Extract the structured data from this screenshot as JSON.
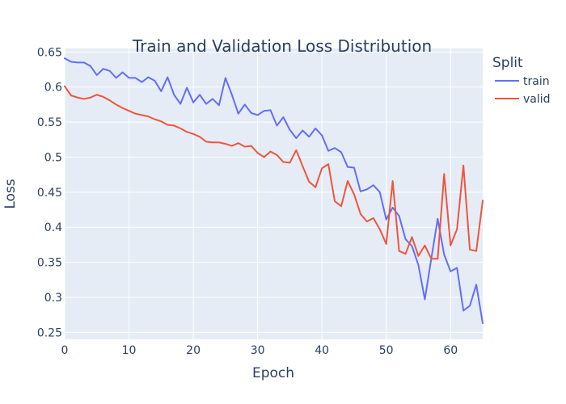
{
  "chart_data": {
    "type": "line",
    "title": "Train and Validation Loss Distribution",
    "xlabel": "Epoch",
    "ylabel": "Loss",
    "xlim": [
      0,
      65
    ],
    "ylim": [
      0.24,
      0.655
    ],
    "x_ticks": [
      0,
      10,
      20,
      30,
      40,
      50,
      60
    ],
    "y_ticks": [
      0.25,
      0.3,
      0.35,
      0.4,
      0.45,
      0.5,
      0.55,
      0.6,
      0.65
    ],
    "y_tick_labels": [
      "0.25",
      "0.3",
      "0.35",
      "0.4",
      "0.45",
      "0.5",
      "0.55",
      "0.6",
      "0.65"
    ],
    "grid": true,
    "legend": {
      "title": "Split",
      "placement": "right"
    },
    "x": [
      0,
      1,
      2,
      3,
      4,
      5,
      6,
      7,
      8,
      9,
      10,
      11,
      12,
      13,
      14,
      15,
      16,
      17,
      18,
      19,
      20,
      21,
      22,
      23,
      24,
      25,
      26,
      27,
      28,
      29,
      30,
      31,
      32,
      33,
      34,
      35,
      36,
      37,
      38,
      39,
      40,
      41,
      42,
      43,
      44,
      45,
      46,
      47,
      48,
      49,
      50,
      51,
      52,
      53,
      54,
      55,
      56,
      57,
      58,
      59,
      60,
      61,
      62,
      63,
      64,
      65
    ],
    "series": [
      {
        "name": "train",
        "color": "#636efa",
        "values": [
          0.641,
          0.636,
          0.635,
          0.635,
          0.63,
          0.617,
          0.626,
          0.623,
          0.613,
          0.621,
          0.613,
          0.613,
          0.607,
          0.614,
          0.609,
          0.594,
          0.614,
          0.589,
          0.576,
          0.599,
          0.578,
          0.589,
          0.576,
          0.583,
          0.574,
          0.613,
          0.589,
          0.562,
          0.575,
          0.563,
          0.56,
          0.566,
          0.567,
          0.545,
          0.557,
          0.539,
          0.527,
          0.538,
          0.529,
          0.541,
          0.531,
          0.509,
          0.513,
          0.507,
          0.486,
          0.485,
          0.451,
          0.454,
          0.46,
          0.45,
          0.411,
          0.428,
          0.416,
          0.383,
          0.373,
          0.346,
          0.297,
          0.355,
          0.412,
          0.361,
          0.337,
          0.342,
          0.281,
          0.288,
          0.318,
          0.263
        ]
      },
      {
        "name": "valid",
        "color": "#ef553b",
        "values": [
          0.601,
          0.588,
          0.585,
          0.583,
          0.585,
          0.589,
          0.586,
          0.581,
          0.575,
          0.57,
          0.566,
          0.562,
          0.56,
          0.558,
          0.554,
          0.551,
          0.546,
          0.545,
          0.541,
          0.536,
          0.533,
          0.529,
          0.522,
          0.521,
          0.521,
          0.519,
          0.516,
          0.52,
          0.515,
          0.516,
          0.506,
          0.5,
          0.508,
          0.503,
          0.493,
          0.492,
          0.51,
          0.487,
          0.465,
          0.457,
          0.484,
          0.49,
          0.437,
          0.43,
          0.466,
          0.447,
          0.419,
          0.408,
          0.413,
          0.397,
          0.376,
          0.466,
          0.366,
          0.362,
          0.386,
          0.359,
          0.374,
          0.355,
          0.355,
          0.476,
          0.374,
          0.397,
          0.488,
          0.368,
          0.366,
          0.438
        ]
      }
    ]
  }
}
